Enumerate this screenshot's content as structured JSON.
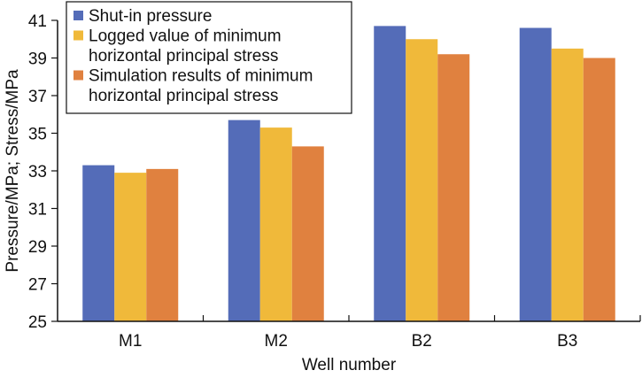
{
  "chart_data": {
    "type": "bar",
    "title": "",
    "xlabel": "Well number",
    "ylabel": "Pressure/MPa; Stress/MPa",
    "categories": [
      "M1",
      "M2",
      "B2",
      "B3"
    ],
    "ylim": [
      25,
      41
    ],
    "yticks": [
      25,
      27,
      29,
      31,
      33,
      35,
      37,
      39,
      41
    ],
    "grid": false,
    "legend_position": "top-left",
    "series": [
      {
        "name": "Shut-in pressure",
        "color": "#546cb8",
        "values": [
          33.3,
          35.7,
          40.7,
          40.6
        ]
      },
      {
        "name": "Logged value of minimum horizontal principal stress",
        "legend_lines": [
          "Logged value of minimum",
          "horizontal principal stress"
        ],
        "color": "#f0b93a",
        "values": [
          32.9,
          35.3,
          40.0,
          39.5
        ]
      },
      {
        "name": "Simulation results of minimum horizontal principal stress",
        "legend_lines": [
          "Simulation results of minimum",
          "horizontal principal stress"
        ],
        "color": "#e0813f",
        "values": [
          33.1,
          34.3,
          39.2,
          39.0
        ]
      }
    ]
  }
}
